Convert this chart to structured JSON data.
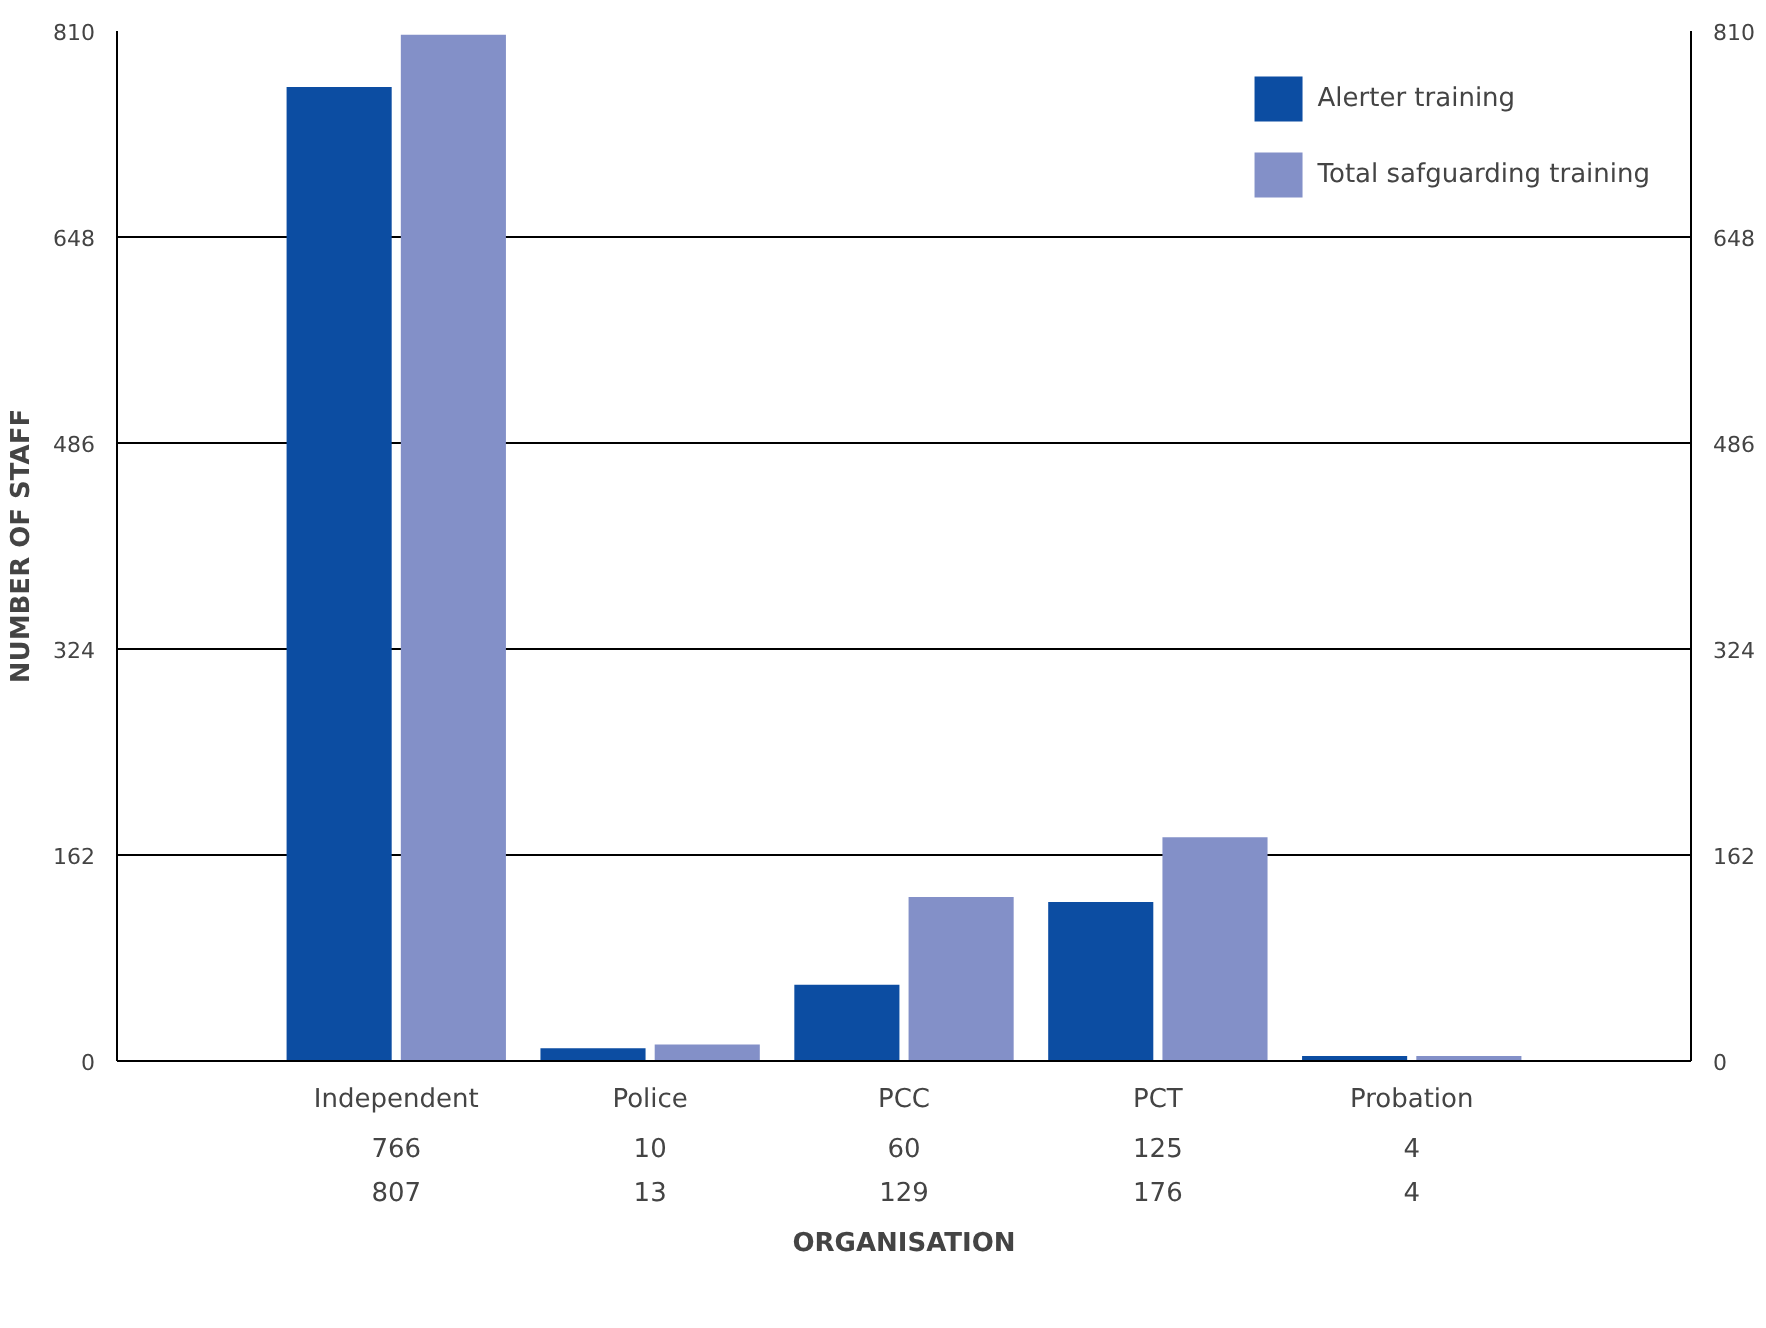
{
  "chart_data": {
    "type": "bar",
    "xlabel": "ORGANISATION",
    "ylabel": "NUMBER OF STAFF",
    "categories": [
      "Independent",
      "Police",
      "PCC",
      "PCT",
      "Probation"
    ],
    "series": [
      {
        "name": "Alerter training",
        "color": "#0c4da2",
        "values": [
          766,
          10,
          60,
          125,
          4
        ]
      },
      {
        "name": "Total safguarding training",
        "color": "#8390c8",
        "values": [
          807,
          13,
          129,
          176,
          4
        ]
      }
    ],
    "ylim": [
      0,
      810
    ],
    "yticks": [
      0,
      162,
      324,
      486,
      648,
      810
    ],
    "y2lim": [
      0,
      810
    ],
    "y2ticks": [
      0,
      162,
      324,
      486,
      648,
      810
    ],
    "grid": "y",
    "legend": "top right",
    "data_labels": true
  }
}
